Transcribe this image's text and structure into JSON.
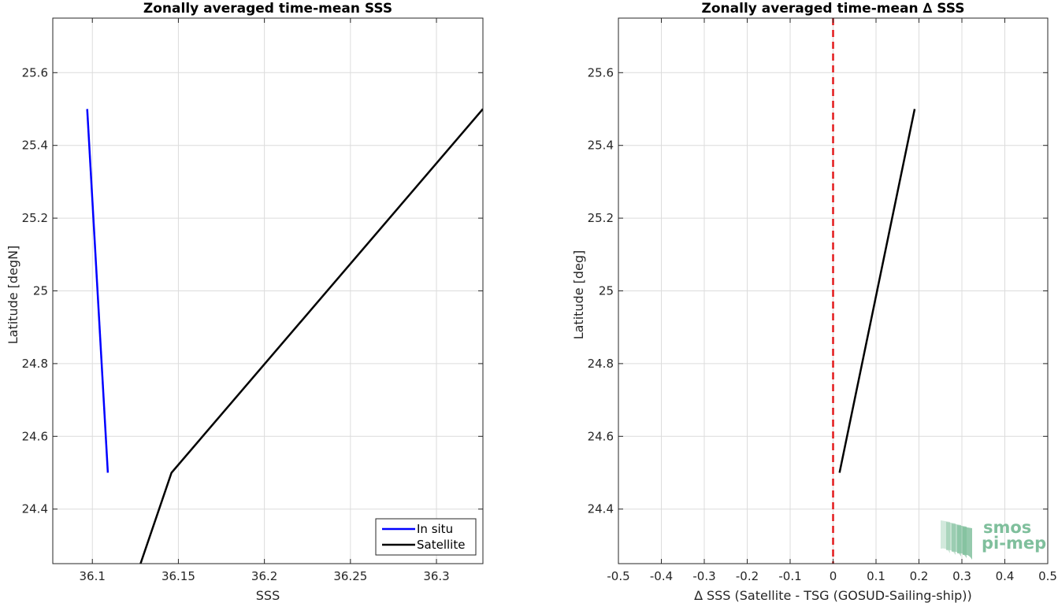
{
  "chart_data": [
    {
      "type": "line",
      "title": "Zonally averaged time-mean SSS",
      "xlabel": "SSS",
      "ylabel": "Latitude [degN]",
      "xlim": [
        36.077,
        36.327
      ],
      "ylim": [
        24.25,
        25.75
      ],
      "xticks": [
        36.1,
        36.15,
        36.2,
        36.25,
        36.3
      ],
      "xtick_labels": [
        "36.1",
        "36.15",
        "36.2",
        "36.25",
        "36.3"
      ],
      "yticks": [
        24.4,
        24.6,
        24.8,
        25,
        25.2,
        25.4,
        25.6
      ],
      "ytick_labels": [
        "24.4",
        "24.6",
        "24.8",
        "25",
        "25.2",
        "25.4",
        "25.6"
      ],
      "grid": true,
      "legend": "bottom-right",
      "series": [
        {
          "name": "In situ",
          "color": "#0000ff",
          "x": [
            36.109,
            36.097
          ],
          "y": [
            24.5,
            25.5
          ]
        },
        {
          "name": "Satellite",
          "color": "#000000",
          "x": [
            36.128,
            36.146,
            36.327
          ],
          "y": [
            24.25,
            24.5,
            25.5
          ]
        }
      ]
    },
    {
      "type": "line",
      "title": "Zonally averaged time-mean ∆ SSS",
      "xlabel": "∆ SSS (Satellite - TSG (GOSUD-Sailing-ship))",
      "ylabel": "Latitude [deg]",
      "xlim": [
        -0.5,
        0.5
      ],
      "ylim": [
        24.25,
        25.75
      ],
      "xticks": [
        -0.5,
        -0.4,
        -0.3,
        -0.2,
        -0.1,
        0,
        0.1,
        0.2,
        0.3,
        0.4,
        0.5
      ],
      "xtick_labels": [
        "-0.5",
        "-0.4",
        "-0.3",
        "-0.2",
        "-0.1",
        "0",
        "0.1",
        "0.2",
        "0.3",
        "0.4",
        "0.5"
      ],
      "yticks": [
        24.4,
        24.6,
        24.8,
        25,
        25.2,
        25.4,
        25.6
      ],
      "ytick_labels": [
        "24.4",
        "24.6",
        "24.8",
        "25",
        "25.2",
        "25.4",
        "25.6"
      ],
      "grid": true,
      "reference_line": {
        "x": 0,
        "color": "#e31a1c",
        "style": "dashed"
      },
      "series": [
        {
          "color": "#000000",
          "x": [
            0.015,
            0.19
          ],
          "y": [
            24.5,
            25.5
          ]
        }
      ]
    }
  ],
  "logo": {
    "line1": "smos",
    "line2": "pi-mep",
    "color": "#7fbf9c"
  }
}
